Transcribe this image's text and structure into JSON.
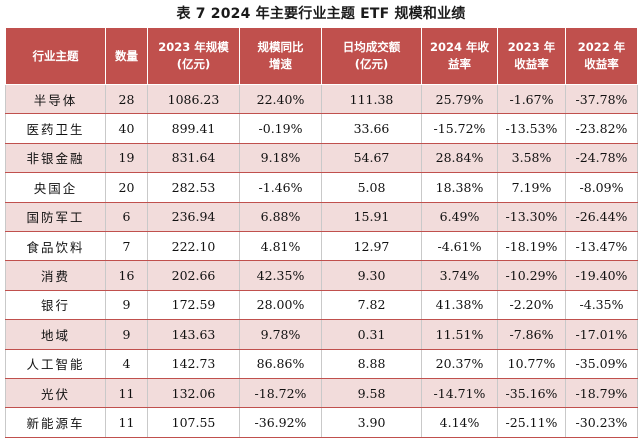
{
  "caption": "表 7  2024 年主要行业主题 ETF 规模和业绩",
  "columns": [
    [
      "行业主题"
    ],
    [
      "数量"
    ],
    [
      "2023 年规模",
      "(亿元)"
    ],
    [
      "规模同比",
      "增速"
    ],
    [
      "日均成交额",
      "(亿元)"
    ],
    [
      "2024 年收",
      "益率"
    ],
    [
      "2023 年",
      "收益率"
    ],
    [
      "2022 年",
      "收益率"
    ]
  ],
  "rows": [
    [
      "半导体",
      "28",
      "1086.23",
      "22.40%",
      "111.38",
      "25.79%",
      "-1.67%",
      "-37.78%"
    ],
    [
      "医药卫生",
      "40",
      "899.41",
      "-0.19%",
      "33.66",
      "-15.72%",
      "-13.53%",
      "-23.82%"
    ],
    [
      "非银金融",
      "19",
      "831.64",
      "9.18%",
      "54.67",
      "28.84%",
      "3.58%",
      "-24.78%"
    ],
    [
      "央国企",
      "20",
      "282.53",
      "-1.46%",
      "5.08",
      "18.38%",
      "7.19%",
      "-8.09%"
    ],
    [
      "国防军工",
      "6",
      "236.94",
      "6.88%",
      "15.91",
      "6.49%",
      "-13.30%",
      "-26.44%"
    ],
    [
      "食品饮料",
      "7",
      "222.10",
      "4.81%",
      "12.97",
      "-4.61%",
      "-18.19%",
      "-13.47%"
    ],
    [
      "消费",
      "16",
      "202.66",
      "42.35%",
      "9.30",
      "3.74%",
      "-10.29%",
      "-19.40%"
    ],
    [
      "银行",
      "9",
      "172.59",
      "28.00%",
      "7.82",
      "41.38%",
      "-2.20%",
      "-4.35%"
    ],
    [
      "地域",
      "9",
      "143.63",
      "9.78%",
      "0.31",
      "11.51%",
      "-7.86%",
      "-17.01%"
    ],
    [
      "人工智能",
      "4",
      "142.73",
      "86.86%",
      "8.88",
      "20.37%",
      "10.77%",
      "-35.09%"
    ],
    [
      "光伏",
      "11",
      "132.06",
      "-18.72%",
      "9.58",
      "-14.71%",
      "-35.16%",
      "-18.79%"
    ],
    [
      "新能源车",
      "11",
      "107.55",
      "-36.92%",
      "3.90",
      "4.14%",
      "-25.11%",
      "-30.23%"
    ]
  ],
  "colors": {
    "header_bg": "#c0504d",
    "header_text": "#ffffff",
    "alt_row_bg": "#f2dcdb",
    "row_rule": "#c0504d"
  }
}
